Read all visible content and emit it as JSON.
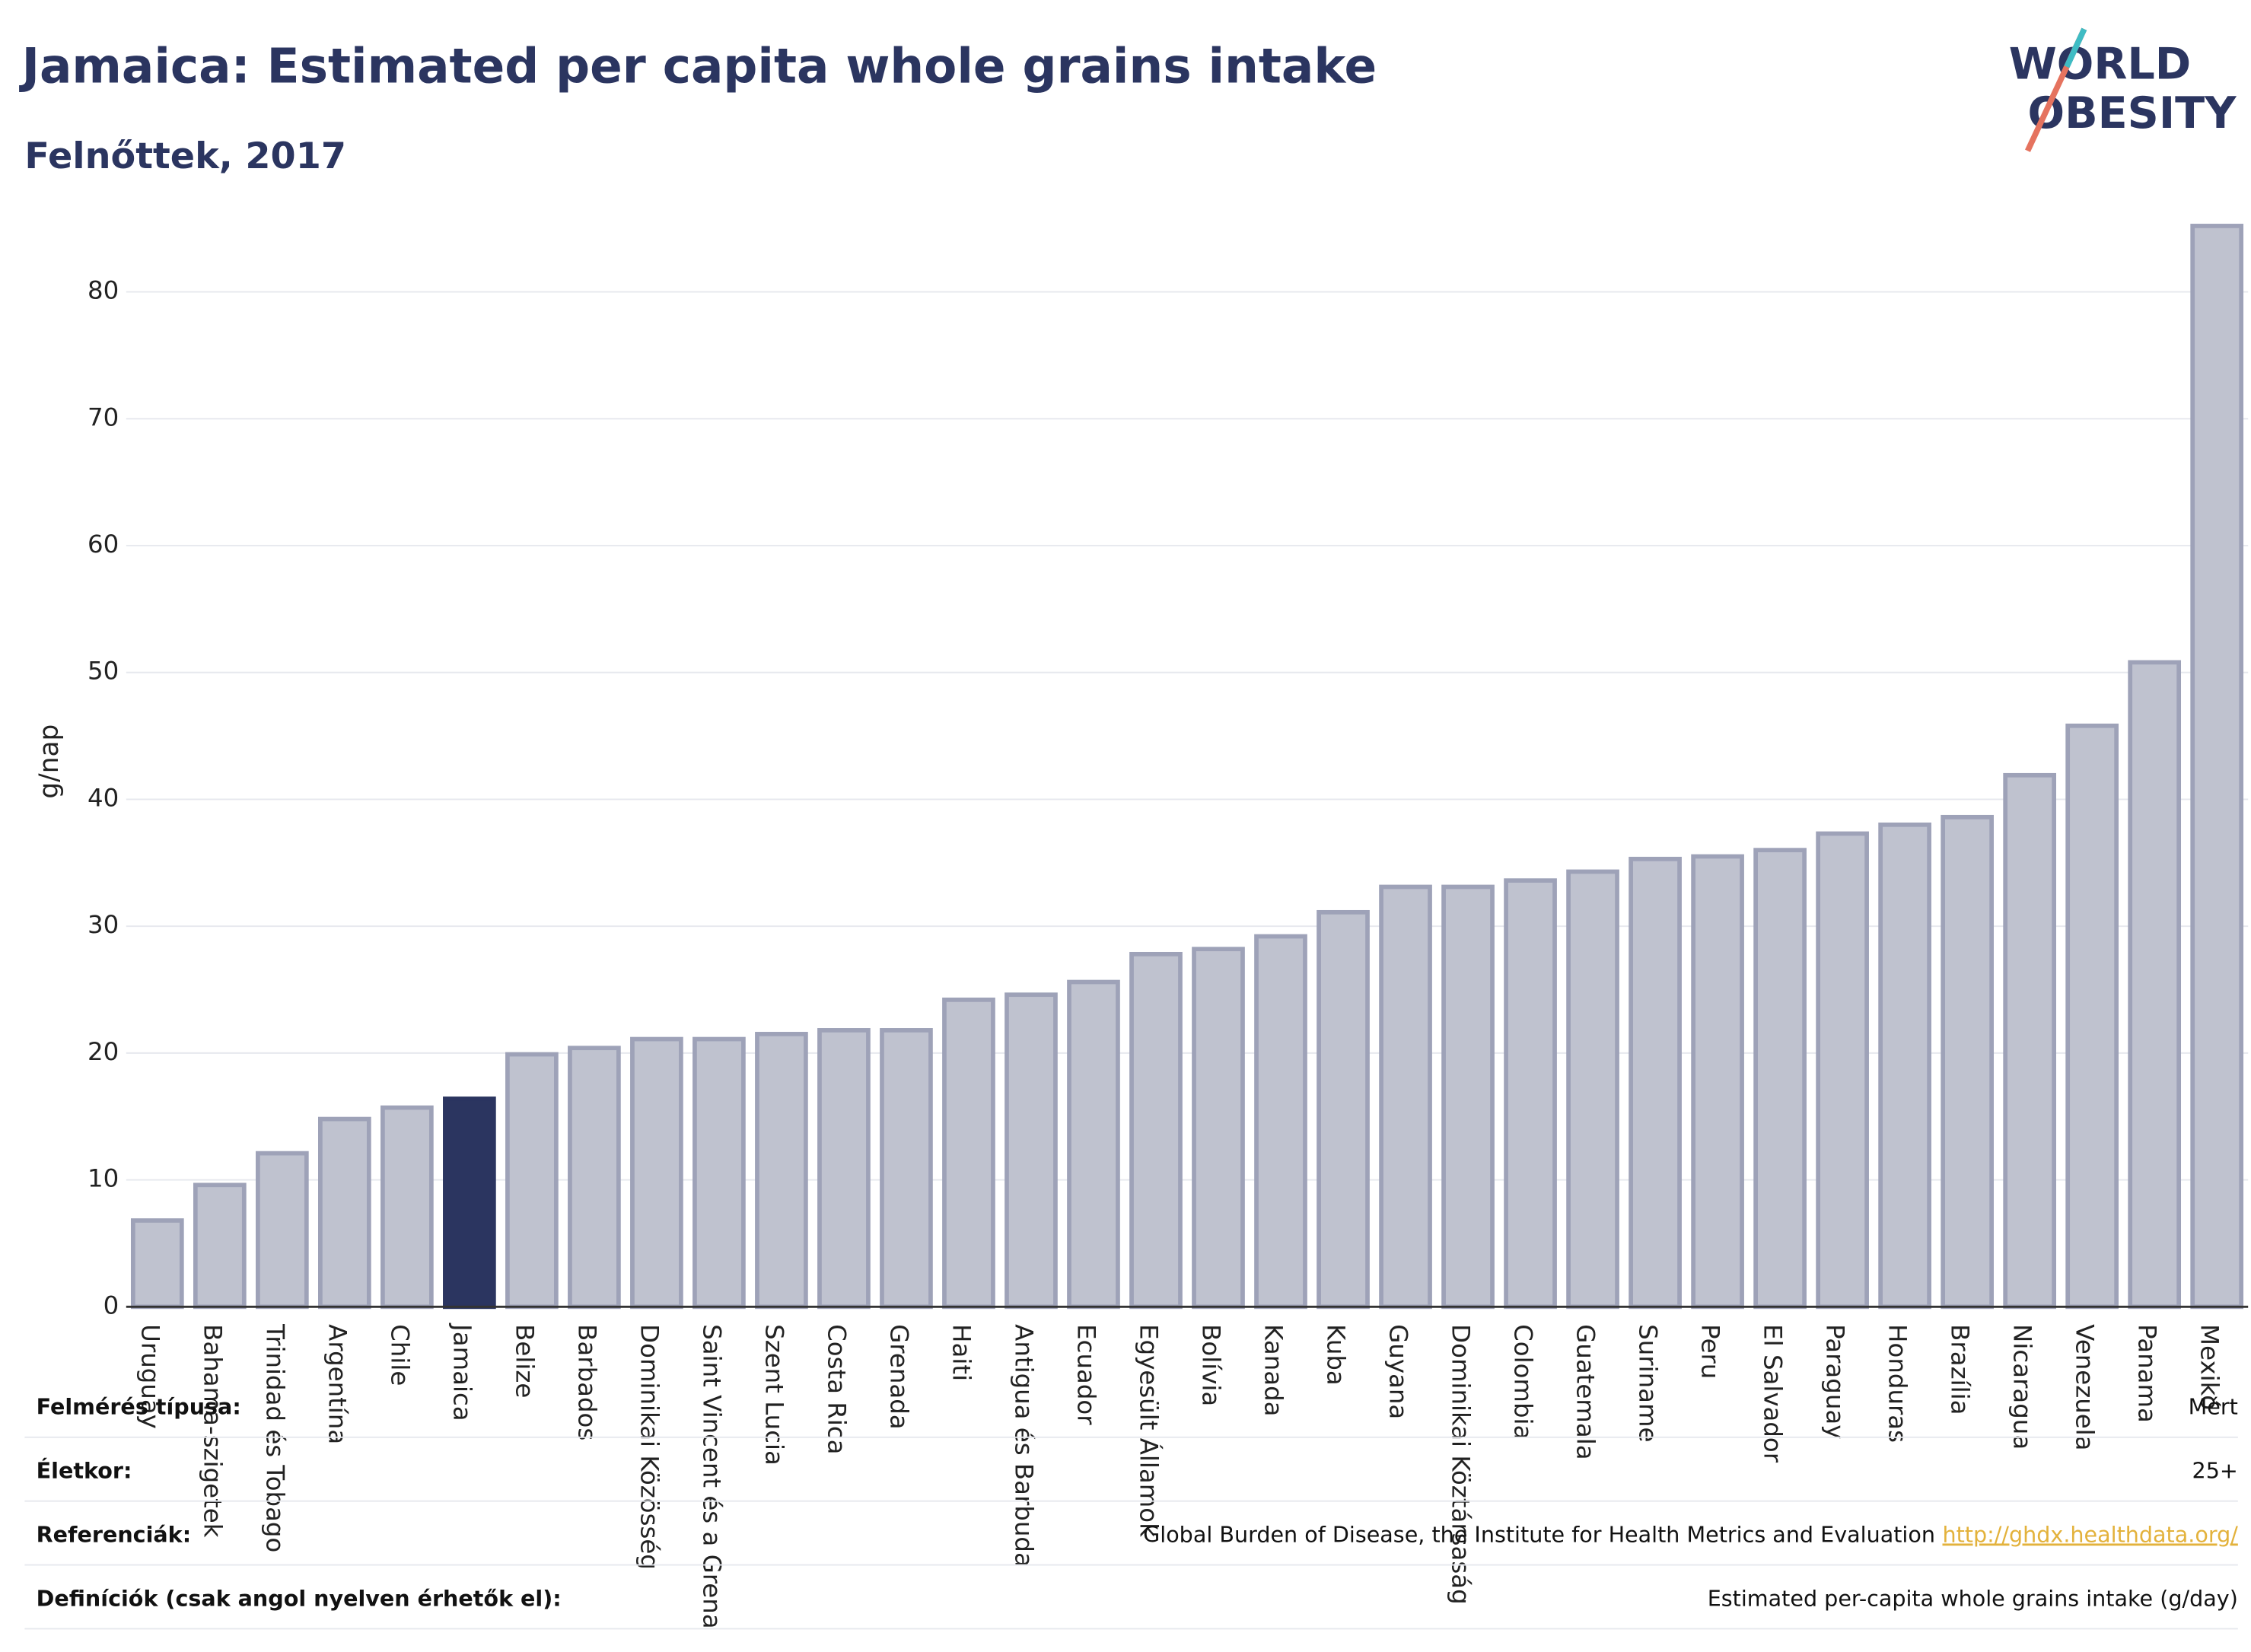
{
  "chart_data": {
    "type": "bar",
    "title": "Jamaica: Estimated per capita whole grains intake",
    "subtitle": "Felnőttek, 2017",
    "y_label": "g/nap",
    "categories": [
      "Uruguay",
      "Bahama-szigetek",
      "Trinidad és Tobago",
      "Argentína",
      "Chile",
      "Jamaica",
      "Belize",
      "Barbados",
      "Dominikai Közösség",
      "Saint Vincent és a Grena",
      "Szent Lucia",
      "Costa Rica",
      "Grenada",
      "Haiti",
      "Antigua és Barbuda",
      "Ecuador",
      "Egyesült Államok",
      "Bolívia",
      "Kanada",
      "Kuba",
      "Guyana",
      "Dominikai Köztársaság",
      "Colombia",
      "Guatemala",
      "Suriname",
      "Peru",
      "El Salvador",
      "Paraguay",
      "Honduras",
      "Brazília",
      "Nicaragua",
      "Venezuela",
      "Panama",
      "Mexikó"
    ],
    "values": [
      6.8,
      9.6,
      12.1,
      14.8,
      15.7,
      16.4,
      19.9,
      20.4,
      21.1,
      21.1,
      21.5,
      21.8,
      21.8,
      24.2,
      24.6,
      25.6,
      27.8,
      28.2,
      29.2,
      31.1,
      33.1,
      33.1,
      33.6,
      34.3,
      35.3,
      35.5,
      36.0,
      37.3,
      38.0,
      38.6,
      41.9,
      45.8,
      50.8,
      85.2
    ],
    "bar_colors": [
      "#bfc2cf",
      "#bfc2cf",
      "#bfc2cf",
      "#bfc2cf",
      "#bfc2cf",
      "#2b3560",
      "#bfc2cf",
      "#bfc2cf",
      "#bfc2cf",
      "#bfc2cf",
      "#bfc2cf",
      "#bfc2cf",
      "#bfc2cf",
      "#bfc2cf",
      "#bfc2cf",
      "#bfc2cf",
      "#bfc2cf",
      "#bfc2cf",
      "#bfc2cf",
      "#bfc2cf",
      "#bfc2cf",
      "#bfc2cf",
      "#bfc2cf",
      "#bfc2cf",
      "#bfc2cf",
      "#bfc2cf",
      "#bfc2cf",
      "#bfc2cf",
      "#bfc2cf",
      "#bfc2cf",
      "#bfc2cf",
      "#bfc2cf",
      "#bfc2cf",
      "#bfc2cf"
    ],
    "ylim": [
      0,
      87
    ],
    "yticks": [
      0,
      10,
      20,
      30,
      40,
      50,
      60,
      70,
      80
    ],
    "grid": true
  },
  "logo": [
    "WORLD",
    "OBESITY"
  ],
  "table": {
    "rows": [
      [
        "Felmérés típusa:",
        "Mért"
      ],
      [
        "Életkor:",
        "25+"
      ],
      [
        "Referenciák:",
        "Global Burden of Disease, the Institute for Health Metrics and Evaluation",
        "http://ghdx.healthdata.org/"
      ],
      [
        "Definíciók (csak angol nyelven érhetők el):",
        "Estimated per-capita whole grains intake (g/day)"
      ]
    ]
  }
}
